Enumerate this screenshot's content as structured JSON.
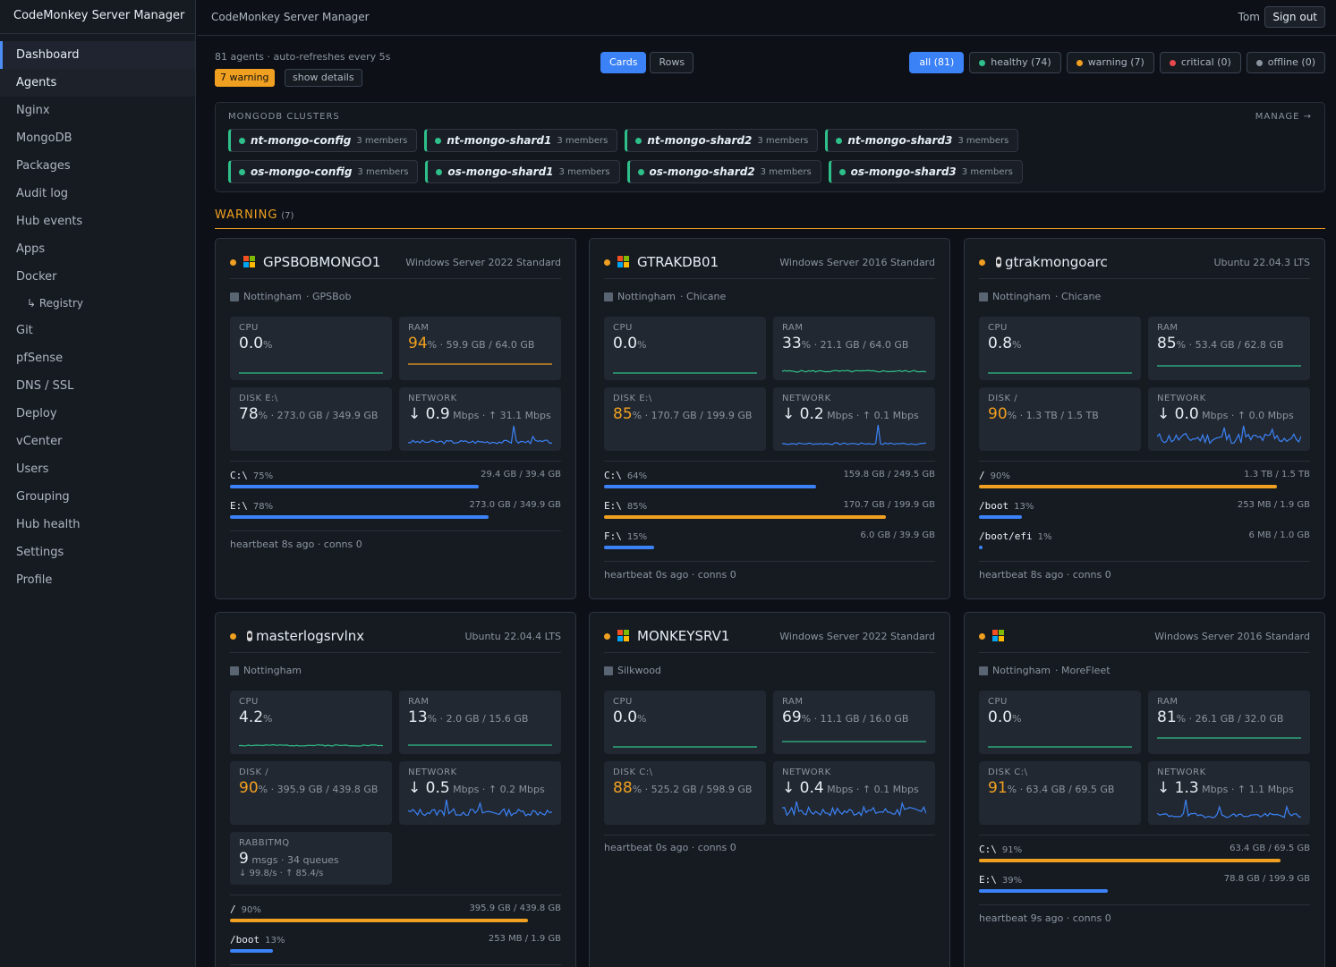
{
  "app": {
    "brand": "CodeMonkey Server Manager",
    "title": "CodeMonkey Server Manager",
    "user": "Tom",
    "signout": "Sign out"
  },
  "nav": [
    {
      "label": "Dashboard",
      "state": "active"
    },
    {
      "label": "Agents",
      "state": "hover"
    },
    {
      "label": "Nginx"
    },
    {
      "label": "MongoDB"
    },
    {
      "label": "Packages"
    },
    {
      "label": "Audit log"
    },
    {
      "label": "Hub events"
    },
    {
      "label": "Apps"
    },
    {
      "label": "Docker"
    },
    {
      "label": "↳ Registry",
      "sub": true
    },
    {
      "label": "Git"
    },
    {
      "label": "pfSense"
    },
    {
      "label": "DNS / SSL"
    },
    {
      "label": "Deploy"
    },
    {
      "label": "vCenter"
    },
    {
      "label": "Users"
    },
    {
      "label": "Grouping"
    },
    {
      "label": "Hub health"
    },
    {
      "label": "Settings"
    },
    {
      "label": "Profile"
    }
  ],
  "summary": {
    "text": "81 agents · auto-refreshes every 5s",
    "warn_badge": "7 warning",
    "show_details": "show details"
  },
  "view_toggle": [
    {
      "label": "Cards",
      "active": true
    },
    {
      "label": "Rows",
      "active": false
    }
  ],
  "filters": [
    {
      "label": "all (81)",
      "active": true,
      "color": ""
    },
    {
      "label": "healthy (74)",
      "color": "#2fbf8a"
    },
    {
      "label": "warning (7)",
      "color": "#f0a020"
    },
    {
      "label": "critical (0)",
      "color": "#e5484d"
    },
    {
      "label": "offline (0)",
      "color": "#8b949e"
    }
  ],
  "mongo": {
    "title": "MONGODB CLUSTERS",
    "manage": "MANAGE →",
    "clusters": [
      {
        "name": "nt-mongo-config",
        "members": "3 members"
      },
      {
        "name": "nt-mongo-shard1",
        "members": "3 members"
      },
      {
        "name": "nt-mongo-shard2",
        "members": "3 members"
      },
      {
        "name": "nt-mongo-shard3",
        "members": "3 members"
      },
      {
        "name": "os-mongo-config",
        "members": "3 members"
      },
      {
        "name": "os-mongo-shard1",
        "members": "3 members"
      },
      {
        "name": "os-mongo-shard2",
        "members": "3 members"
      },
      {
        "name": "os-mongo-shard3",
        "members": "3 members"
      }
    ]
  },
  "section": {
    "title": "WARNING",
    "count": "(7)"
  },
  "colors": {
    "accent": "#3b82f6",
    "warning": "#f0a020",
    "healthy": "#2fbf8a",
    "spark_green": "#2fbf8a",
    "spark_blue": "#3b82f6"
  },
  "cards": [
    {
      "host": "GPSBOBMONGO1",
      "os_icon": "windows-icon",
      "os": "Windows Server 2022 Standard",
      "location": "Nottingham",
      "group": "· GPSBob",
      "cpu": {
        "label": "CPU",
        "value": "0.0",
        "unit": "%",
        "detail": "",
        "warn": false
      },
      "ram": {
        "label": "RAM",
        "value": "94",
        "unit": "%",
        "detail": " · 59.9 GB / 64.0 GB",
        "warn": true
      },
      "disk": {
        "label": "DISK E:\\",
        "value": "78",
        "unit": "%",
        "detail": " · 273.0 GB / 349.9 GB",
        "warn": false
      },
      "net": {
        "label": "NETWORK",
        "value": "↓ 0.9",
        "unit": " Mbps",
        "detail": " · ↑ 31.1 Mbps"
      },
      "disks": [
        {
          "name": "C:\\",
          "pct": "75%",
          "size": "29.4 GB / 39.4 GB",
          "fill": 0.75,
          "warn": false
        },
        {
          "name": "E:\\",
          "pct": "78%",
          "size": "273.0 GB / 349.9 GB",
          "fill": 0.78,
          "warn": false
        }
      ],
      "heartbeat": "heartbeat 8s ago · conns 0"
    },
    {
      "host": "GTRAKDB01",
      "os_icon": "windows-icon",
      "os": "Windows Server 2016 Standard",
      "location": "Nottingham",
      "group": "· Chicane",
      "cpu": {
        "label": "CPU",
        "value": "0.0",
        "unit": "%",
        "detail": "",
        "warn": false
      },
      "ram": {
        "label": "RAM",
        "value": "33",
        "unit": "%",
        "detail": " · 21.1 GB / 64.0 GB",
        "warn": false
      },
      "disk": {
        "label": "DISK E:\\",
        "value": "85",
        "unit": "%",
        "detail": " · 170.7 GB / 199.9 GB",
        "warn": true
      },
      "net": {
        "label": "NETWORK",
        "value": "↓ 0.2",
        "unit": " Mbps",
        "detail": " · ↑ 0.1 Mbps"
      },
      "disks": [
        {
          "name": "C:\\",
          "pct": "64%",
          "size": "159.8 GB / 249.5 GB",
          "fill": 0.64,
          "warn": false
        },
        {
          "name": "E:\\",
          "pct": "85%",
          "size": "170.7 GB / 199.9 GB",
          "fill": 0.85,
          "warn": true
        },
        {
          "name": "F:\\",
          "pct": "15%",
          "size": "6.0 GB / 39.9 GB",
          "fill": 0.15,
          "warn": false
        }
      ],
      "heartbeat": "heartbeat 0s ago · conns 0"
    },
    {
      "host": "gtrakmongoarc",
      "os_icon": "linux-icon",
      "os": "Ubuntu 22.04.3 LTS",
      "location": "Nottingham",
      "group": "· Chicane",
      "cpu": {
        "label": "CPU",
        "value": "0.8",
        "unit": "%",
        "detail": "",
        "warn": false
      },
      "ram": {
        "label": "RAM",
        "value": "85",
        "unit": "%",
        "detail": " · 53.4 GB / 62.8 GB",
        "warn": false
      },
      "disk": {
        "label": "DISK /",
        "value": "90",
        "unit": "%",
        "detail": " · 1.3 TB / 1.5 TB",
        "warn": true
      },
      "net": {
        "label": "NETWORK",
        "value": "↓ 0.0",
        "unit": " Mbps",
        "detail": " · ↑ 0.0 Mbps"
      },
      "disks": [
        {
          "name": "/",
          "pct": "90%",
          "size": "1.3 TB / 1.5 TB",
          "fill": 0.9,
          "warn": true
        },
        {
          "name": "/boot",
          "pct": "13%",
          "size": "253 MB / 1.9 GB",
          "fill": 0.13,
          "warn": false
        },
        {
          "name": "/boot/efi",
          "pct": "1%",
          "size": "6 MB / 1.0 GB",
          "fill": 0.01,
          "warn": false
        }
      ],
      "heartbeat": "heartbeat 8s ago · conns 0"
    },
    {
      "host": "masterlogsrvlnx",
      "os_icon": "linux-icon",
      "os": "Ubuntu 22.04.4 LTS",
      "location": "Nottingham",
      "group": "",
      "cpu": {
        "label": "CPU",
        "value": "4.2",
        "unit": "%",
        "detail": "",
        "warn": false
      },
      "ram": {
        "label": "RAM",
        "value": "13",
        "unit": "%",
        "detail": " · 2.0 GB / 15.6 GB",
        "warn": false
      },
      "disk": {
        "label": "DISK /",
        "value": "90",
        "unit": "%",
        "detail": " · 395.9 GB / 439.8 GB",
        "warn": true
      },
      "net": {
        "label": "NETWORK",
        "value": "↓ 0.5",
        "unit": " Mbps",
        "detail": " · ↑ 0.2 Mbps"
      },
      "rabbitmq": {
        "label": "RABBITMQ",
        "value": "9",
        "unit": " msgs",
        "detail": " · 34 queues",
        "rates": "↓ 99.8/s · ↑ 85.4/s"
      },
      "disks": [
        {
          "name": "/",
          "pct": "90%",
          "size": "395.9 GB / 439.8 GB",
          "fill": 0.9,
          "warn": true
        },
        {
          "name": "/boot",
          "pct": "13%",
          "size": "253 MB / 1.9 GB",
          "fill": 0.13,
          "warn": false
        }
      ],
      "heartbeat": ""
    },
    {
      "host": "MONKEYSRV1",
      "os_icon": "windows-icon",
      "os": "Windows Server 2022 Standard",
      "location": "Silkwood",
      "group": "",
      "cpu": {
        "label": "CPU",
        "value": "0.0",
        "unit": "%",
        "detail": "",
        "warn": false
      },
      "ram": {
        "label": "RAM",
        "value": "69",
        "unit": "%",
        "detail": " · 11.1 GB / 16.0 GB",
        "warn": false
      },
      "disk": {
        "label": "DISK C:\\",
        "value": "88",
        "unit": "%",
        "detail": " · 525.2 GB / 598.9 GB",
        "warn": true
      },
      "net": {
        "label": "NETWORK",
        "value": "↓ 0.4",
        "unit": " Mbps",
        "detail": " · ↑ 0.1 Mbps"
      },
      "disks": [],
      "heartbeat": "heartbeat 0s ago · conns 0"
    },
    {
      "host": "",
      "os_icon": "windows-icon",
      "os": "Windows Server 2016 Standard",
      "location": "Nottingham",
      "group": "· MoreFleet",
      "cpu": {
        "label": "CPU",
        "value": "0.0",
        "unit": "%",
        "detail": "",
        "warn": false
      },
      "ram": {
        "label": "RAM",
        "value": "81",
        "unit": "%",
        "detail": " · 26.1 GB / 32.0 GB",
        "warn": false
      },
      "disk": {
        "label": "DISK C:\\",
        "value": "91",
        "unit": "%",
        "detail": " · 63.4 GB / 69.5 GB",
        "warn": true
      },
      "net": {
        "label": "NETWORK",
        "value": "↓ 1.3",
        "unit": " Mbps",
        "detail": " · ↑ 1.1 Mbps"
      },
      "disks": [
        {
          "name": "C:\\",
          "pct": "91%",
          "size": "63.4 GB / 69.5 GB",
          "fill": 0.91,
          "warn": true
        },
        {
          "name": "E:\\",
          "pct": "39%",
          "size": "78.8 GB / 199.9 GB",
          "fill": 0.39,
          "warn": false
        }
      ],
      "heartbeat": "heartbeat 9s ago · conns 0"
    }
  ]
}
